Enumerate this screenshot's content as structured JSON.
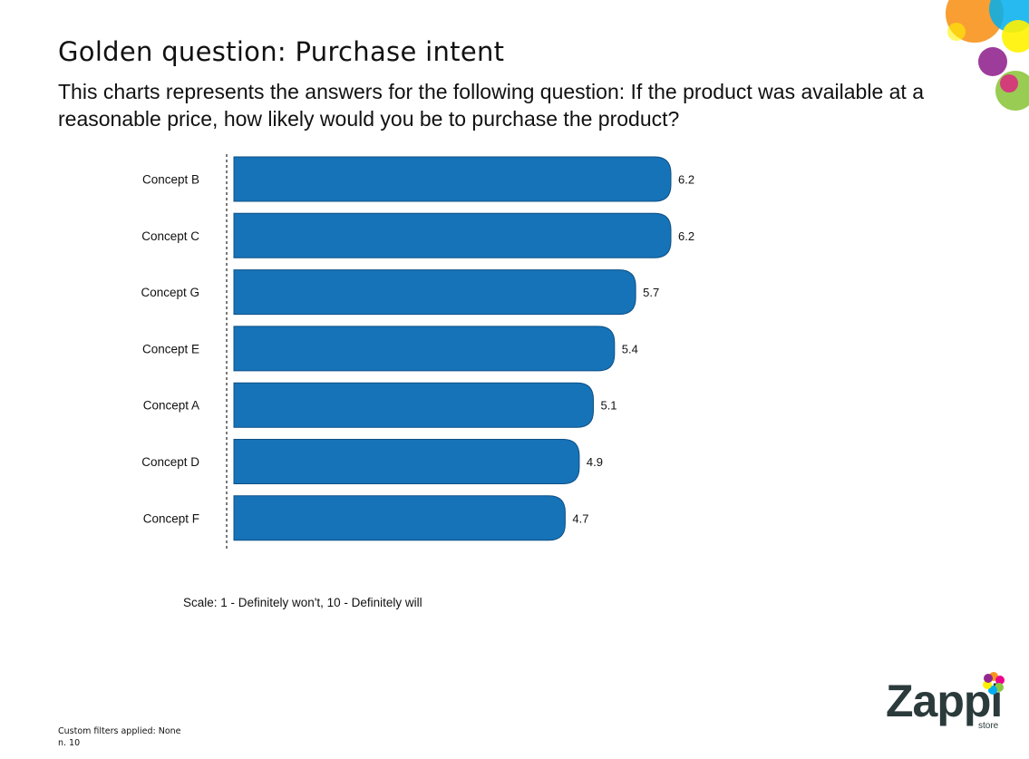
{
  "header": {
    "title": "Golden question: Purchase intent",
    "subtitle": "This charts represents the answers for the following question: If the product was available at a reasonable price, how likely would you be to purchase the product?"
  },
  "chart_data": {
    "type": "bar",
    "orientation": "horizontal",
    "categories": [
      "Concept B",
      "Concept C",
      "Concept G",
      "Concept E",
      "Concept A",
      "Concept D",
      "Concept F"
    ],
    "values": [
      6.2,
      6.2,
      5.7,
      5.4,
      5.1,
      4.9,
      4.7
    ],
    "value_labels": [
      "6.2",
      "6.2",
      "5.7",
      "5.4",
      "5.1",
      "4.9",
      "4.7"
    ],
    "title": "",
    "xlabel": "",
    "ylabel": "",
    "xlim": [
      0,
      6.2
    ],
    "grid": false,
    "bar_color": "#1673b8",
    "bar_edge_color": "#0d4f85"
  },
  "notes": {
    "scale": "Scale: 1 - Definitely won't, 10 - Definitely will",
    "filters": "Custom filters applied: None",
    "sample": "n. 10"
  },
  "logo": {
    "word": "Zappi",
    "sub": "store",
    "colors": [
      "#f7941d",
      "#ec008c",
      "#8dc63f",
      "#00aeef",
      "#fff200",
      "#92278f"
    ]
  }
}
